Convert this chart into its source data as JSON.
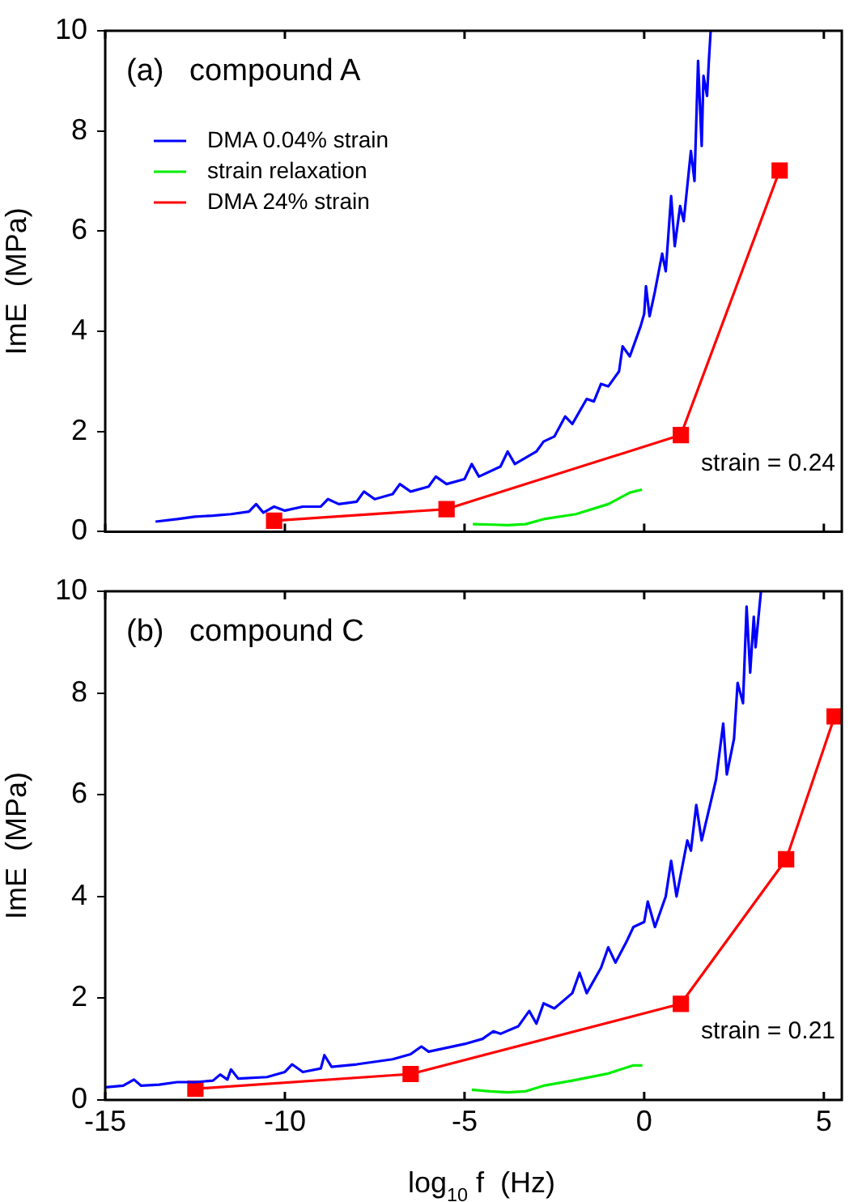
{
  "chart_data": [
    {
      "type": "line",
      "title": "(a)   compound A",
      "ylabel": "ImE  (MPa)",
      "annotations": [
        "strain = 0.24"
      ],
      "xlim": [
        -15,
        5.5
      ],
      "xticks": [
        -15,
        -10,
        -5,
        0,
        5
      ],
      "ylim": [
        0,
        10
      ],
      "yticks": [
        0,
        2,
        4,
        6,
        8,
        10
      ],
      "tick_labels": "y",
      "legend": "top left",
      "grid": false,
      "series": [
        {
          "name": "DMA 0.04% strain",
          "color": "#0000ff",
          "marker": "none",
          "x": [
            -13.6,
            -13,
            -12.5,
            -12,
            -11.5,
            -11,
            -10.8,
            -10.6,
            -10.3,
            -10,
            -9.5,
            -9,
            -8.8,
            -8.5,
            -8,
            -7.8,
            -7.5,
            -7,
            -6.8,
            -6.5,
            -6,
            -5.8,
            -5.5,
            -5,
            -4.8,
            -4.6,
            -4,
            -3.8,
            -3.6,
            -3,
            -2.8,
            -2.5,
            -2.2,
            -2,
            -1.6,
            -1.4,
            -1.2,
            -1,
            -0.7,
            -0.6,
            -0.4,
            -0.1,
            0,
            0.05,
            0.15,
            0.3,
            0.5,
            0.6,
            0.75,
            0.85,
            1,
            1.1,
            1.3,
            1.4,
            1.5,
            1.6,
            1.65,
            1.75,
            1.8,
            1.85
          ],
          "values": [
            0.2,
            0.25,
            0.3,
            0.32,
            0.35,
            0.4,
            0.55,
            0.38,
            0.5,
            0.42,
            0.5,
            0.5,
            0.65,
            0.55,
            0.6,
            0.8,
            0.65,
            0.75,
            0.95,
            0.8,
            0.9,
            1.1,
            0.95,
            1.05,
            1.35,
            1.1,
            1.3,
            1.6,
            1.35,
            1.6,
            1.8,
            1.9,
            2.3,
            2.15,
            2.65,
            2.6,
            2.95,
            2.9,
            3.2,
            3.7,
            3.5,
            4.1,
            4.35,
            4.9,
            4.3,
            4.8,
            5.55,
            5.2,
            6.7,
            5.7,
            6.5,
            6.2,
            7.6,
            7,
            9.4,
            7.7,
            9.1,
            8.7,
            9.4,
            10
          ]
        },
        {
          "name": "strain relaxation",
          "color": "#00ee00",
          "marker": "none",
          "x": [
            -4.77,
            -4.2,
            -3.8,
            -3.3,
            -2.8,
            -1.9,
            -1,
            -0.4,
            -0.06
          ],
          "values": [
            0.15,
            0.14,
            0.13,
            0.15,
            0.25,
            0.35,
            0.55,
            0.78,
            0.84
          ]
        },
        {
          "name": "DMA 24% strain",
          "color": "#ff0000",
          "marker": "square",
          "x": [
            -10.3,
            -5.5,
            1.02,
            3.77
          ],
          "values": [
            0.22,
            0.45,
            1.93,
            7.21
          ]
        }
      ]
    },
    {
      "type": "line",
      "title": "(b)   compound C",
      "xlabel": "log$_{10}$ f  (Hz)",
      "ylabel": "ImE  (MPa)",
      "annotations": [
        "strain = 0.21"
      ],
      "xlim": [
        -15,
        5.5
      ],
      "xticks": [
        -15,
        -10,
        -5,
        0,
        5
      ],
      "ylim": [
        0,
        10
      ],
      "yticks": [
        0,
        2,
        4,
        6,
        8,
        10
      ],
      "grid": false,
      "series": [
        {
          "color": "#0000ff",
          "marker": "none",
          "x": [
            -15,
            -14.5,
            -14.2,
            -14,
            -13.5,
            -13,
            -12.5,
            -12,
            -11.8,
            -11.6,
            -11.5,
            -11.3,
            -10.5,
            -10,
            -9.8,
            -9.5,
            -9,
            -8.9,
            -8.7,
            -8,
            -7,
            -6.5,
            -6.2,
            -6,
            -5,
            -4.5,
            -4.2,
            -4,
            -3.5,
            -3.2,
            -3,
            -2.8,
            -2.5,
            -2,
            -1.8,
            -1.6,
            -1.2,
            -1,
            -0.8,
            -0.5,
            -0.3,
            0,
            0.1,
            0.3,
            0.6,
            0.75,
            0.9,
            1.2,
            1.3,
            1.45,
            1.6,
            1.8,
            2,
            2.2,
            2.3,
            2.5,
            2.6,
            2.75,
            2.85,
            2.95,
            3.05,
            3.1,
            3.25
          ],
          "values": [
            0.25,
            0.28,
            0.4,
            0.28,
            0.3,
            0.35,
            0.35,
            0.38,
            0.5,
            0.4,
            0.6,
            0.42,
            0.45,
            0.55,
            0.7,
            0.55,
            0.62,
            0.88,
            0.65,
            0.7,
            0.8,
            0.9,
            1.05,
            0.95,
            1.1,
            1.2,
            1.35,
            1.3,
            1.45,
            1.75,
            1.5,
            1.9,
            1.8,
            2.1,
            2.5,
            2.1,
            2.6,
            3,
            2.7,
            3.1,
            3.4,
            3.5,
            3.9,
            3.4,
            4,
            4.7,
            4,
            5.1,
            4.9,
            5.8,
            5.1,
            5.7,
            6.3,
            7.4,
            6.4,
            7.1,
            8.2,
            7.8,
            9.7,
            8.4,
            9.5,
            8.9,
            10
          ]
        },
        {
          "color": "#00ee00",
          "marker": "none",
          "x": [
            -4.8,
            -4.3,
            -3.8,
            -3.3,
            -2.8,
            -2,
            -1,
            -0.3,
            -0.05
          ],
          "values": [
            0.2,
            0.17,
            0.15,
            0.17,
            0.28,
            0.38,
            0.52,
            0.68,
            0.68
          ]
        },
        {
          "color": "#ff0000",
          "marker": "square",
          "x": [
            -12.49,
            -6.5,
            1.02,
            3.95,
            5.3
          ],
          "values": [
            0.22,
            0.51,
            1.89,
            4.73,
            7.54
          ]
        }
      ]
    }
  ]
}
